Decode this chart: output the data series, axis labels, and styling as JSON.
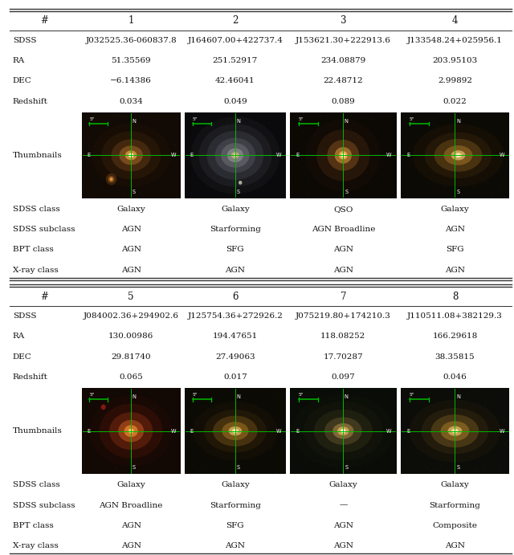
{
  "fig_width": 6.4,
  "fig_height": 6.91,
  "dpi": 100,
  "background_color": "#ffffff",
  "section1": {
    "header": [
      "#",
      "1",
      "2",
      "3",
      "4"
    ],
    "rows": [
      [
        "SDSS",
        "J032525.36-060837.8",
        "J164607.00+422737.4",
        "J153621.30+222913.6",
        "J133548.24+025956.1"
      ],
      [
        "RA",
        "51.35569",
        "251.52917",
        "234.08879",
        "203.95103"
      ],
      [
        "DEC",
        "−6.14386",
        "42.46041",
        "22.48712",
        "2.99892"
      ],
      [
        "Redshift",
        "0.034",
        "0.049",
        "0.089",
        "0.022"
      ],
      [
        "Thumbnails",
        "",
        "",
        "",
        ""
      ],
      [
        "SDSS class",
        "Galaxy",
        "Galaxy",
        "QSO",
        "Galaxy"
      ],
      [
        "SDSS subclass",
        "AGN",
        "Starforming",
        "AGN Broadline",
        "AGN"
      ],
      [
        "BPT class",
        "AGN",
        "SFG",
        "AGN",
        "SFG"
      ],
      [
        "X-ray class",
        "AGN",
        "AGN",
        "AGN",
        "AGN"
      ]
    ]
  },
  "section2": {
    "header": [
      "#",
      "5",
      "6",
      "7",
      "8"
    ],
    "rows": [
      [
        "SDSS",
        "J084002.36+294902.6",
        "J125754.36+272926.2",
        "J075219.80+174210.3",
        "J110511.08+382129.3"
      ],
      [
        "RA",
        "130.00986",
        "194.47651",
        "118.08252",
        "166.29618"
      ],
      [
        "DEC",
        "29.81740",
        "27.49063",
        "17.70287",
        "38.35815"
      ],
      [
        "Redshift",
        "0.065",
        "0.017",
        "0.097",
        "0.046"
      ],
      [
        "Thumbnails",
        "",
        "",
        "",
        ""
      ],
      [
        "SDSS class",
        "Galaxy",
        "Galaxy",
        "Galaxy",
        "Galaxy"
      ],
      [
        "SDSS subclass",
        "AGN Broadline",
        "Starforming",
        "—",
        "Starforming"
      ],
      [
        "BPT class",
        "AGN",
        "SFG",
        "AGN",
        "Composite"
      ],
      [
        "X-ray class",
        "AGN",
        "AGN",
        "AGN",
        "AGN"
      ]
    ]
  },
  "text_color": "#111111",
  "line_color": "#333333",
  "header_fontsize": 8.5,
  "cell_fontsize": 7.5,
  "label_fontsize": 7.5
}
